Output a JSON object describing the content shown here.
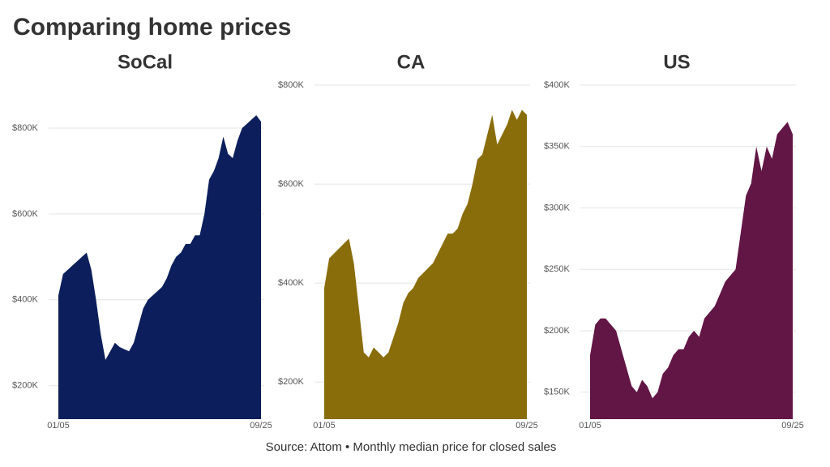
{
  "title": "Comparing home prices",
  "source": "Source: Attom • Monthly median price for closed sales",
  "chart_data": [
    {
      "type": "area",
      "title": "SoCal",
      "color": "#0c1f5c",
      "grid": true,
      "categories": [
        "01/05",
        null,
        null,
        null,
        null,
        null,
        null,
        null,
        null,
        null,
        null,
        null,
        null,
        null,
        null,
        null,
        null,
        null,
        null,
        null,
        null,
        null,
        null,
        null,
        null,
        null,
        null,
        null,
        null,
        null,
        null,
        null,
        null,
        null,
        null,
        null,
        null,
        null,
        null,
        null,
        null,
        null,
        null,
        "09/25"
      ],
      "values": [
        410000,
        460000,
        470000,
        480000,
        490000,
        500000,
        510000,
        470000,
        400000,
        320000,
        260000,
        280000,
        300000,
        290000,
        285000,
        280000,
        300000,
        340000,
        380000,
        400000,
        410000,
        420000,
        430000,
        450000,
        480000,
        500000,
        510000,
        530000,
        530000,
        550000,
        550000,
        600000,
        680000,
        700000,
        730000,
        780000,
        740000,
        730000,
        770000,
        800000,
        810000,
        820000,
        830000,
        815000
      ],
      "ylim": [
        122000,
        900000
      ],
      "yticks": [
        {
          "value": 200000,
          "label": "$200K"
        },
        {
          "value": 400000,
          "label": "$400K"
        },
        {
          "value": 600000,
          "label": "$600K"
        },
        {
          "value": 800000,
          "label": "$800K"
        }
      ]
    },
    {
      "type": "area",
      "title": "CA",
      "color": "#8a6d0b",
      "grid": true,
      "categories": [
        "01/05",
        null,
        null,
        null,
        null,
        null,
        null,
        null,
        null,
        null,
        null,
        null,
        null,
        null,
        null,
        null,
        null,
        null,
        null,
        null,
        null,
        null,
        null,
        null,
        null,
        null,
        null,
        null,
        null,
        null,
        null,
        null,
        null,
        null,
        null,
        null,
        null,
        null,
        null,
        null,
        null,
        "09/25"
      ],
      "values": [
        390000,
        450000,
        460000,
        470000,
        480000,
        490000,
        440000,
        350000,
        260000,
        250000,
        270000,
        260000,
        250000,
        260000,
        290000,
        320000,
        360000,
        380000,
        390000,
        410000,
        420000,
        430000,
        440000,
        460000,
        480000,
        500000,
        500000,
        510000,
        540000,
        560000,
        600000,
        650000,
        660000,
        700000,
        740000,
        680000,
        700000,
        720000,
        750000,
        730000,
        750000,
        740000
      ],
      "ylim": [
        125000,
        800000
      ],
      "yticks": [
        {
          "value": 200000,
          "label": "$200K"
        },
        {
          "value": 400000,
          "label": "$400K"
        },
        {
          "value": 600000,
          "label": "$600K"
        },
        {
          "value": 800000,
          "label": "$800K"
        }
      ]
    },
    {
      "type": "area",
      "title": "US",
      "color": "#621645",
      "grid": true,
      "categories": [
        "01/05",
        null,
        null,
        null,
        null,
        null,
        null,
        null,
        null,
        null,
        null,
        null,
        null,
        null,
        null,
        null,
        null,
        null,
        null,
        null,
        null,
        null,
        null,
        null,
        null,
        null,
        null,
        null,
        null,
        null,
        null,
        null,
        null,
        null,
        null,
        null,
        null,
        null,
        null,
        "09/25"
      ],
      "values": [
        180000,
        205000,
        210000,
        210000,
        205000,
        200000,
        185000,
        170000,
        155000,
        150000,
        160000,
        155000,
        145000,
        150000,
        165000,
        170000,
        180000,
        185000,
        185000,
        195000,
        200000,
        195000,
        210000,
        215000,
        220000,
        230000,
        240000,
        245000,
        250000,
        280000,
        310000,
        320000,
        350000,
        330000,
        350000,
        340000,
        360000,
        365000,
        370000,
        360000
      ],
      "ylim": [
        128000,
        400000
      ],
      "yticks": [
        {
          "value": 150000,
          "label": "$150K"
        },
        {
          "value": 200000,
          "label": "$200K"
        },
        {
          "value": 250000,
          "label": "$250K"
        },
        {
          "value": 300000,
          "label": "$300K"
        },
        {
          "value": 350000,
          "label": "$350K"
        },
        {
          "value": 400000,
          "label": "$400K"
        }
      ]
    }
  ]
}
